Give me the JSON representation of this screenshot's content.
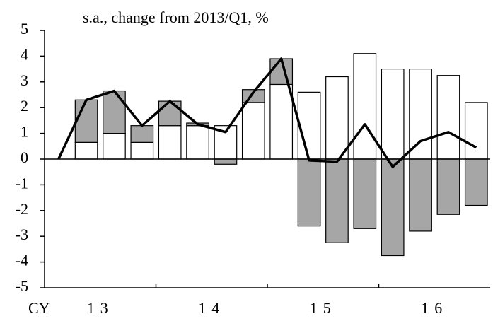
{
  "chart_data": {
    "type": "stacked_bar_line",
    "subtitle": "s.a., change from 2013/Q1, %",
    "xlabel": "CY",
    "categories": [
      "13",
      null,
      null,
      null,
      "14",
      null,
      null,
      null,
      "15",
      null,
      null,
      null,
      "16",
      null,
      null,
      null
    ],
    "series": [
      {
        "kind": "bar",
        "color": "#ffffff",
        "values": [
          null,
          0.65,
          1.0,
          0.65,
          1.3,
          1.3,
          1.3,
          2.2,
          2.9,
          2.6,
          3.2,
          4.1,
          3.5,
          3.5,
          3.25,
          2.2
        ]
      },
      {
        "kind": "bar",
        "color": "#a6a6a6",
        "values": [
          null,
          1.65,
          1.65,
          0.65,
          0.95,
          0.1,
          -0.2,
          0.5,
          1.0,
          -2.6,
          -3.25,
          -2.7,
          -3.75,
          -2.8,
          -2.15,
          -1.8
        ]
      },
      {
        "kind": "line",
        "color": "#000000",
        "values": [
          0,
          2.3,
          2.65,
          1.3,
          2.25,
          1.35,
          1.05,
          2.6,
          3.9,
          -0.05,
          -0.1,
          1.35,
          -0.3,
          0.7,
          1.05,
          0.45
        ]
      }
    ],
    "ylim": [
      -5,
      5
    ],
    "yticks": [
      -5,
      -4,
      -3,
      -2,
      -1,
      0,
      1,
      2,
      3,
      4,
      5
    ]
  }
}
